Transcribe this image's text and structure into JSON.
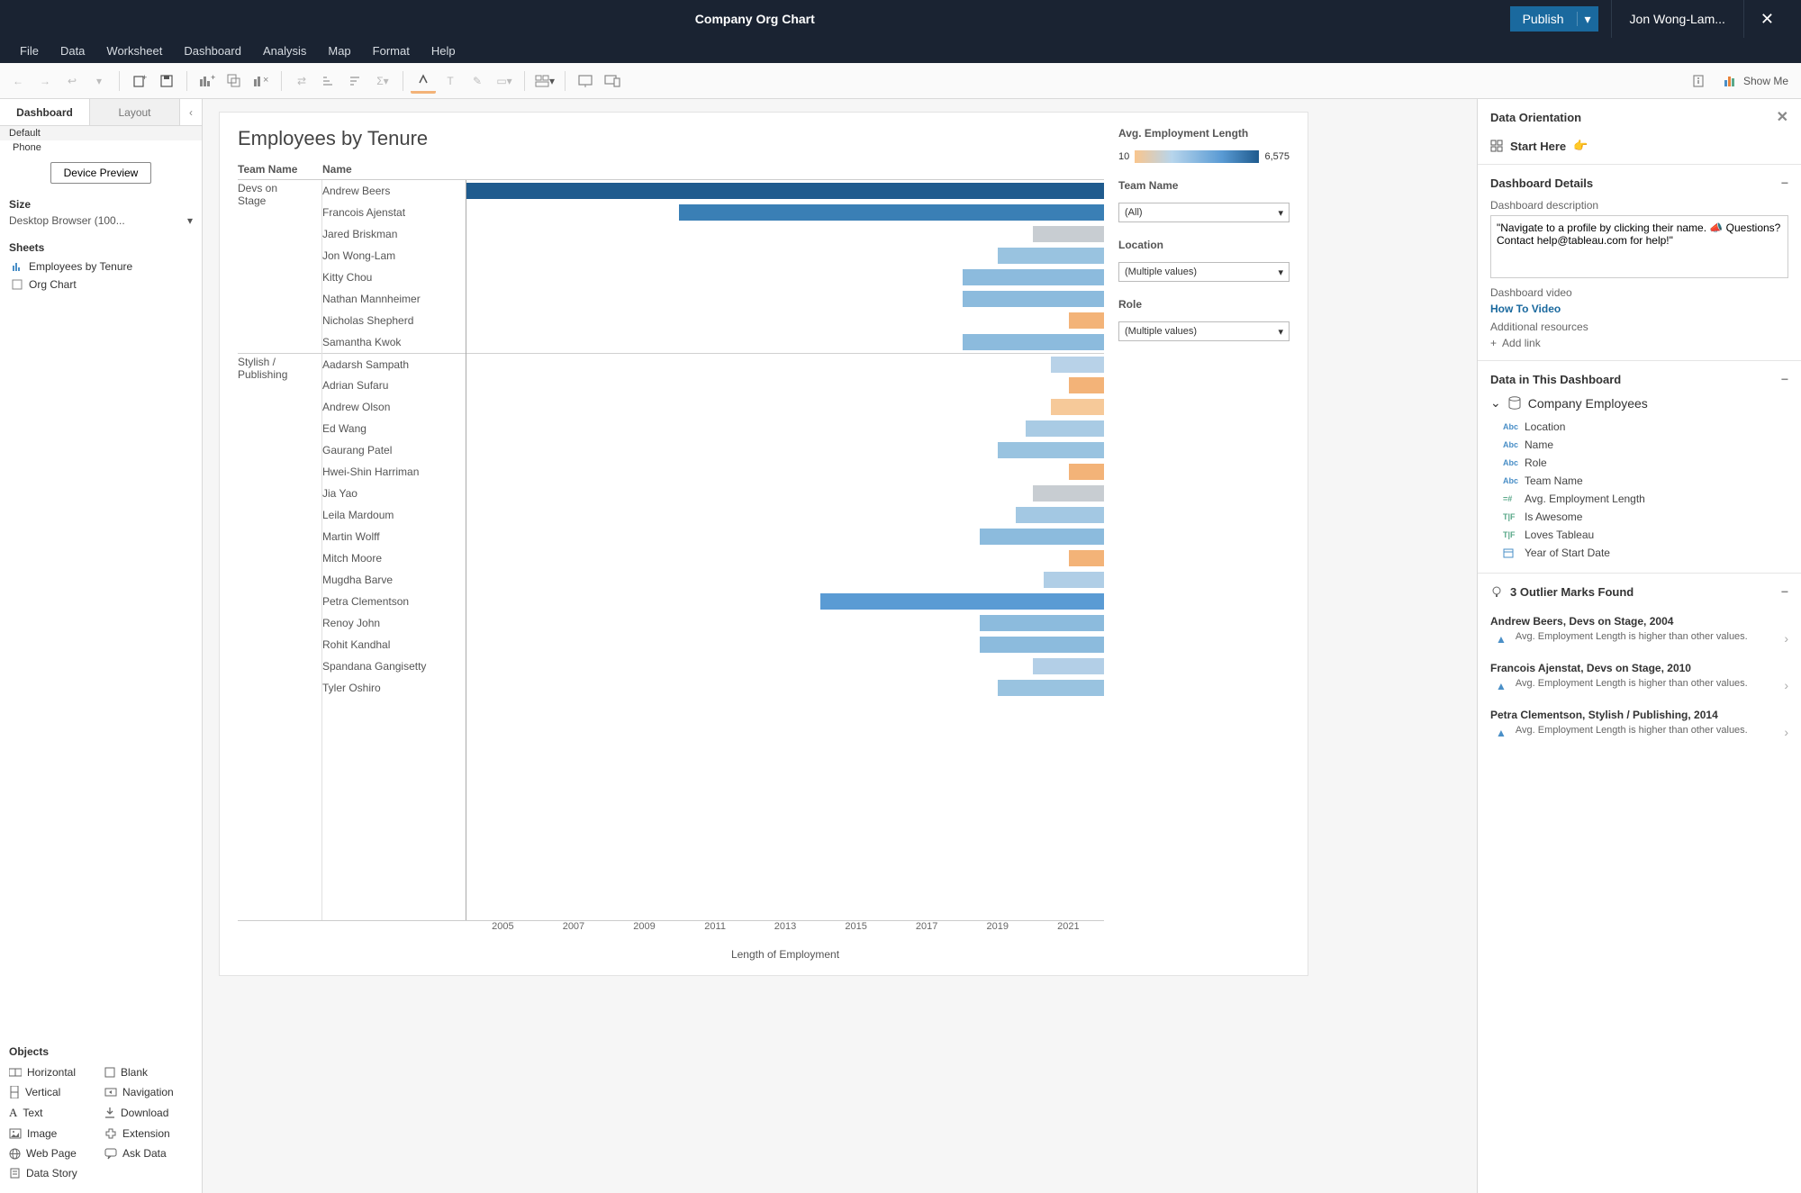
{
  "titlebar": {
    "title": "Company Org Chart",
    "publish": "Publish",
    "user": "Jon Wong-Lam..."
  },
  "menubar": [
    "File",
    "Data",
    "Worksheet",
    "Dashboard",
    "Analysis",
    "Map",
    "Format",
    "Help"
  ],
  "toolbar": {
    "showme": "Show Me"
  },
  "left": {
    "tab_dashboard": "Dashboard",
    "tab_layout": "Layout",
    "default": "Default",
    "phone": "Phone",
    "device_preview": "Device Preview",
    "size": "Size",
    "size_value": "Desktop Browser (100...",
    "sheets": "Sheets",
    "sheet1": "Employees by Tenure",
    "sheet2": "Org Chart",
    "objects": "Objects",
    "obj": {
      "horizontal": "Horizontal",
      "blank": "Blank",
      "vertical": "Vertical",
      "navigation": "Navigation",
      "text": "Text",
      "download": "Download",
      "image": "Image",
      "extension": "Extension",
      "webpage": "Web Page",
      "askdata": "Ask Data",
      "datastory": "Data Story"
    }
  },
  "viz": {
    "title": "Employees by Tenure",
    "hdr_team": "Team Name",
    "hdr_name": "Name",
    "x_label": "Length of Employment",
    "legend_title": "Avg. Employment Length",
    "legend_min": "10",
    "legend_max": "6,575",
    "filter1_label": "Team Name",
    "filter1_value": "(All)",
    "filter2_label": "Location",
    "filter2_value": "(Multiple values)",
    "filter3_label": "Role",
    "filter3_value": "(Multiple values)",
    "x_ticks": [
      {
        "label": "2005",
        "pos": 5.7
      },
      {
        "label": "2007",
        "pos": 16.8
      },
      {
        "label": "2009",
        "pos": 27.9
      },
      {
        "label": "2011",
        "pos": 39.0
      },
      {
        "label": "2013",
        "pos": 50.0
      },
      {
        "label": "2015",
        "pos": 61.1
      },
      {
        "label": "2017",
        "pos": 72.2
      },
      {
        "label": "2019",
        "pos": 83.3
      },
      {
        "label": "2021",
        "pos": 94.4
      }
    ],
    "teams": [
      {
        "name": "Devs on Stage",
        "rows": [
          {
            "name": "Andrew Beers",
            "start": 2004,
            "color": "#1f5b8e"
          },
          {
            "name": "Francois Ajenstat",
            "start": 2010,
            "color": "#3a7fb5"
          },
          {
            "name": "Jared Briskman",
            "start": 2020,
            "color": "#c8cdd2"
          },
          {
            "name": "Jon Wong-Lam",
            "start": 2019,
            "color": "#99c3e0"
          },
          {
            "name": "Kitty Chou",
            "start": 2018,
            "color": "#8cbbdd"
          },
          {
            "name": "Nathan Mannheimer",
            "start": 2018,
            "color": "#8cbbdd"
          },
          {
            "name": "Nicholas Shepherd",
            "start": 2021,
            "color": "#f3b378"
          },
          {
            "name": "Samantha Kwok",
            "start": 2018,
            "color": "#8cbbdd"
          }
        ]
      },
      {
        "name": "Stylish / Publishing",
        "rows": [
          {
            "name": "Aadarsh Sampath",
            "start": 2020.5,
            "color": "#b8d2e8"
          },
          {
            "name": "Adrian Sufaru",
            "start": 2021,
            "color": "#f3b378"
          },
          {
            "name": "Andrew Olson",
            "start": 2020.5,
            "color": "#f6c999"
          },
          {
            "name": "Ed Wang",
            "start": 2019.8,
            "color": "#a9cbe4"
          },
          {
            "name": "Gaurang Patel",
            "start": 2019,
            "color": "#99c3e0"
          },
          {
            "name": "Hwei-Shin Harriman",
            "start": 2021,
            "color": "#f3b378"
          },
          {
            "name": "Jia Yao",
            "start": 2020,
            "color": "#c8cdd2"
          },
          {
            "name": "Leila Mardoum",
            "start": 2019.5,
            "color": "#a3c8e3"
          },
          {
            "name": "Martin Wolff",
            "start": 2018.5,
            "color": "#8cbbdd"
          },
          {
            "name": "Mitch Moore",
            "start": 2021,
            "color": "#f3b378"
          },
          {
            "name": "Mugdha Barve",
            "start": 2020.3,
            "color": "#b0cee6"
          },
          {
            "name": "Petra Clementson",
            "start": 2014,
            "color": "#5a9bd4"
          },
          {
            "name": "Renoy John",
            "start": 2018.5,
            "color": "#8cbbdd"
          },
          {
            "name": "Rohit Kandhal",
            "start": 2018.5,
            "color": "#8cbbdd"
          },
          {
            "name": "Spandana Gangisetty",
            "start": 2020,
            "color": "#b3cfe7"
          },
          {
            "name": "Tyler Oshiro",
            "start": 2019,
            "color": "#99c3e0"
          }
        ]
      }
    ],
    "x_domain": [
      2004,
      2022
    ]
  },
  "right": {
    "header": "Data Orientation",
    "start_here": "Start Here",
    "details": "Dashboard Details",
    "desc_label": "Dashboard description",
    "desc_value": "\"Navigate to a profile by clicking their name. 📣 Questions? Contact help@tableau.com for help!\"",
    "video_label": "Dashboard video",
    "video_link": "How To Video",
    "resources_label": "Additional resources",
    "add_link": "Add link",
    "data_in": "Data in This Dashboard",
    "datasource": "Company Employees",
    "fields": [
      {
        "icon": "abc",
        "label": "Location"
      },
      {
        "icon": "abc",
        "label": "Name"
      },
      {
        "icon": "abc",
        "label": "Role"
      },
      {
        "icon": "abc",
        "label": "Team Name"
      },
      {
        "icon": "num",
        "label": "Avg. Employment Length"
      },
      {
        "icon": "tf",
        "label": "Is Awesome"
      },
      {
        "icon": "tf",
        "label": "Loves Tableau"
      },
      {
        "icon": "date",
        "label": "Year of Start Date"
      }
    ],
    "outliers_title": "3 Outlier Marks Found",
    "outliers": [
      {
        "title": "Andrew Beers, Devs on Stage, 2004",
        "desc": "Avg. Employment Length is higher than other values."
      },
      {
        "title": "Francois Ajenstat, Devs on Stage, 2010",
        "desc": "Avg. Employment Length is higher than other values."
      },
      {
        "title": "Petra Clementson, Stylish / Publishing, 2014",
        "desc": "Avg. Employment Length is higher than other values."
      }
    ]
  }
}
